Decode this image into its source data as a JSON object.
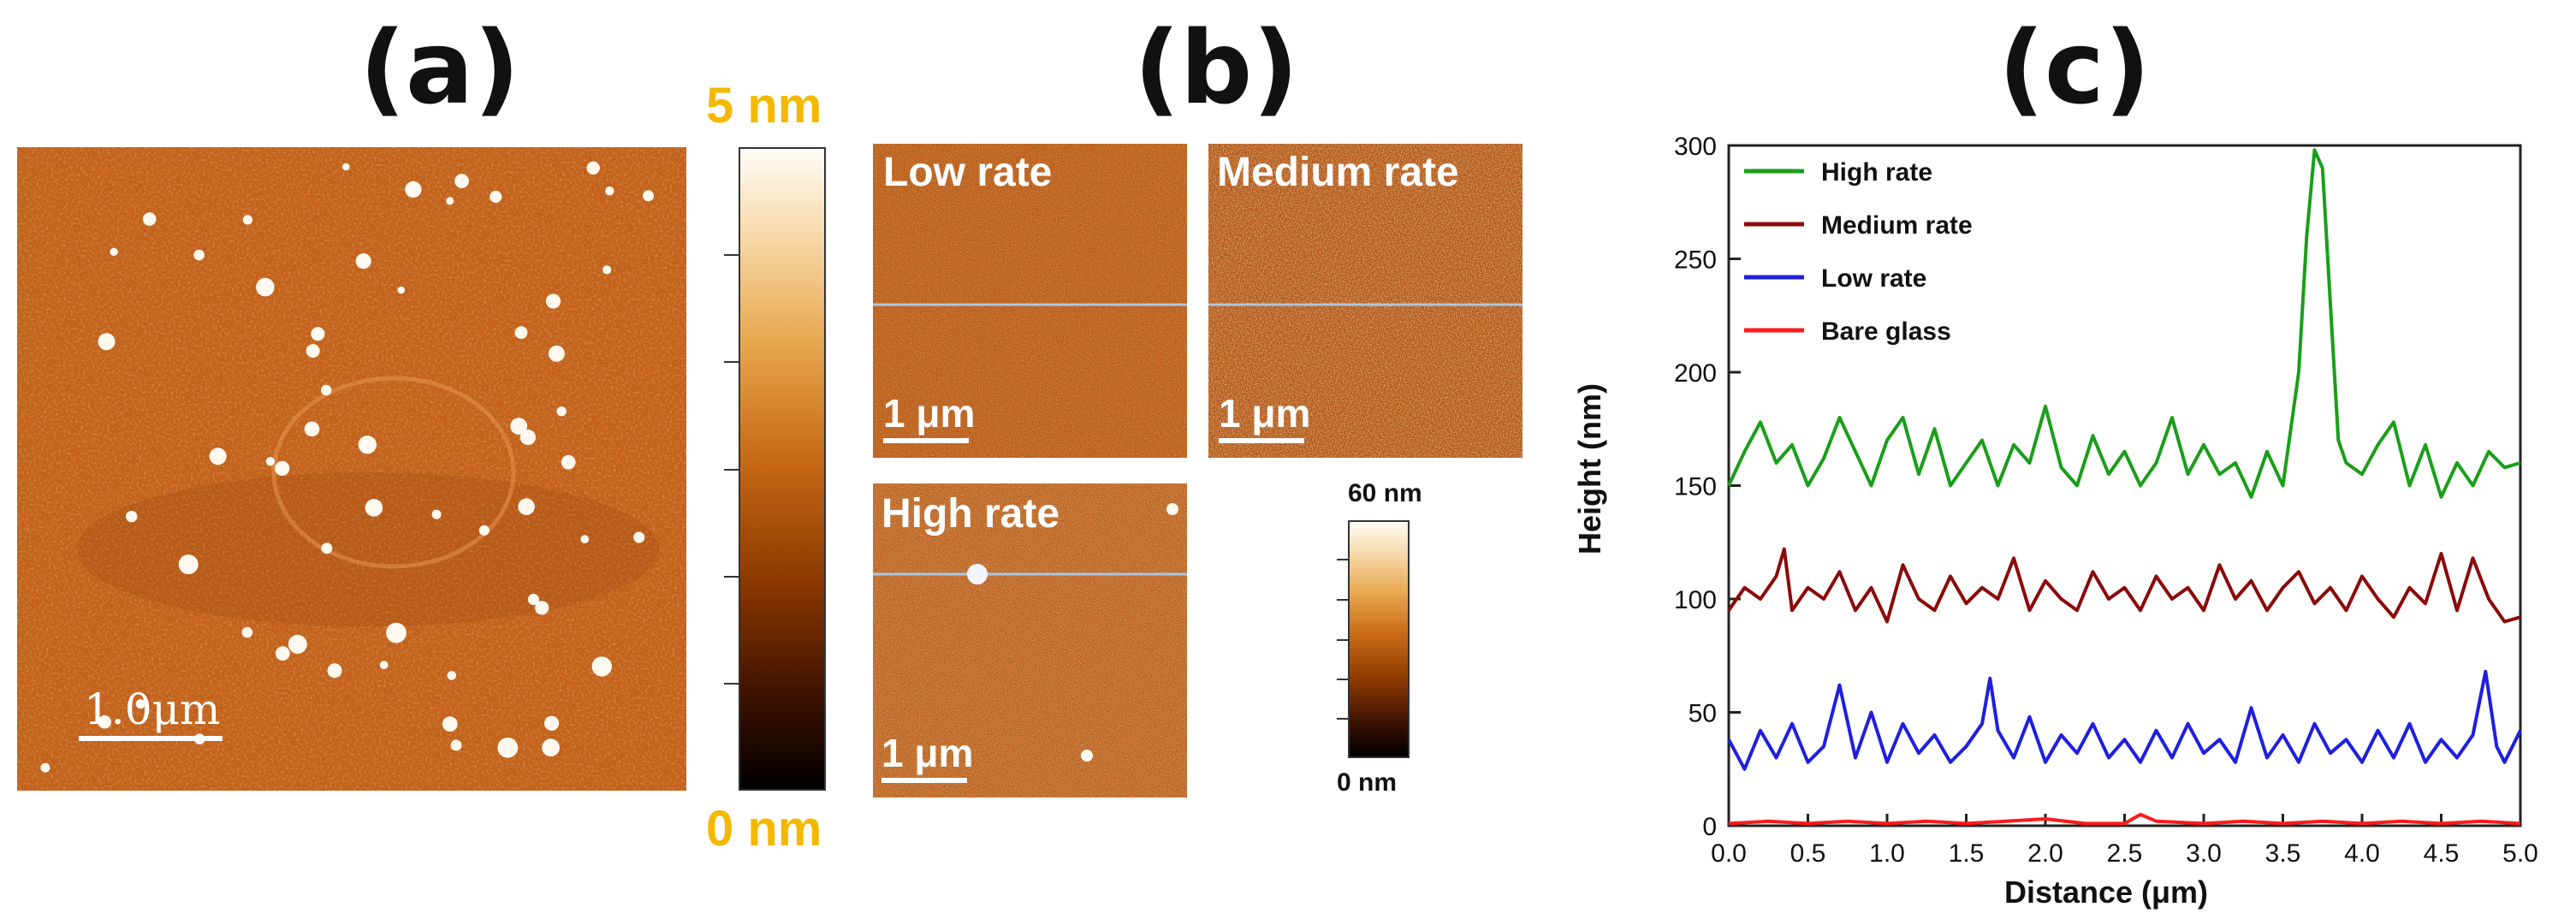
{
  "panels": {
    "a": {
      "label": "(a)",
      "scale_bar": "1.0μm",
      "colorbar": {
        "max": "5 nm",
        "min": "0 nm"
      }
    },
    "b": {
      "label": "(b)",
      "images": [
        {
          "title": "Low rate",
          "scale_bar": "1 μm"
        },
        {
          "title": "Medium rate",
          "scale_bar": "1 μm"
        },
        {
          "title": "High rate",
          "scale_bar": "1 μm"
        }
      ],
      "colorbar": {
        "max": "60 nm",
        "min": "0 nm"
      }
    },
    "c": {
      "label": "(c)"
    }
  },
  "colors": {
    "high": "#1a9e1a",
    "medium": "#8b0a0a",
    "low": "#1f1fe0",
    "bare": "#ff1a1a",
    "afm_dark": "#1a0800",
    "afm_mid": "#c8641a",
    "afm_light": "#fff8ee",
    "profile_line": "#a8c8e8"
  },
  "chart_data": {
    "type": "line",
    "title": "",
    "xlabel": "Distance (μm)",
    "ylabel": "Height (nm)",
    "xlim": [
      0,
      5
    ],
    "ylim": [
      0,
      300
    ],
    "xticks": [
      "0.0",
      "0.5",
      "1.0",
      "1.5",
      "2.0",
      "2.5",
      "3.0",
      "3.5",
      "4.0",
      "4.5",
      "5.0"
    ],
    "yticks": [
      "0",
      "50",
      "100",
      "150",
      "200",
      "250",
      "300"
    ],
    "legend_position": "top-left",
    "series": [
      {
        "name": "High rate",
        "color": "#1a9e1a",
        "x": [
          0.0,
          0.1,
          0.2,
          0.3,
          0.4,
          0.5,
          0.6,
          0.7,
          0.8,
          0.9,
          1.0,
          1.1,
          1.2,
          1.3,
          1.4,
          1.5,
          1.6,
          1.7,
          1.8,
          1.9,
          2.0,
          2.1,
          2.2,
          2.3,
          2.4,
          2.5,
          2.6,
          2.7,
          2.8,
          2.9,
          3.0,
          3.1,
          3.2,
          3.3,
          3.4,
          3.5,
          3.6,
          3.65,
          3.7,
          3.75,
          3.8,
          3.85,
          3.9,
          4.0,
          4.1,
          4.2,
          4.3,
          4.4,
          4.5,
          4.6,
          4.7,
          4.8,
          4.9,
          5.0
        ],
        "y": [
          150,
          165,
          178,
          160,
          168,
          150,
          162,
          180,
          165,
          150,
          170,
          180,
          155,
          175,
          150,
          160,
          170,
          150,
          168,
          160,
          185,
          158,
          150,
          172,
          155,
          165,
          150,
          160,
          180,
          155,
          168,
          155,
          160,
          145,
          165,
          150,
          200,
          260,
          298,
          290,
          230,
          170,
          160,
          155,
          168,
          178,
          150,
          168,
          145,
          160,
          150,
          165,
          158,
          160
        ]
      },
      {
        "name": "Medium rate",
        "color": "#8b0a0a",
        "x": [
          0.0,
          0.1,
          0.2,
          0.3,
          0.35,
          0.4,
          0.5,
          0.6,
          0.7,
          0.8,
          0.9,
          1.0,
          1.1,
          1.2,
          1.3,
          1.4,
          1.5,
          1.6,
          1.7,
          1.8,
          1.9,
          2.0,
          2.1,
          2.2,
          2.3,
          2.4,
          2.5,
          2.6,
          2.7,
          2.8,
          2.9,
          3.0,
          3.1,
          3.2,
          3.3,
          3.4,
          3.5,
          3.6,
          3.7,
          3.8,
          3.9,
          4.0,
          4.1,
          4.2,
          4.3,
          4.4,
          4.5,
          4.6,
          4.7,
          4.8,
          4.9,
          5.0
        ],
        "y": [
          95,
          105,
          100,
          110,
          122,
          95,
          105,
          100,
          112,
          95,
          105,
          90,
          115,
          100,
          95,
          110,
          98,
          105,
          100,
          118,
          95,
          108,
          100,
          95,
          112,
          100,
          105,
          95,
          110,
          100,
          105,
          95,
          115,
          100,
          108,
          95,
          105,
          112,
          98,
          105,
          95,
          110,
          100,
          92,
          105,
          98,
          120,
          95,
          118,
          100,
          90,
          92
        ]
      },
      {
        "name": "Low rate",
        "color": "#1f1fe0",
        "x": [
          0.0,
          0.1,
          0.2,
          0.3,
          0.4,
          0.5,
          0.6,
          0.7,
          0.8,
          0.9,
          1.0,
          1.1,
          1.2,
          1.3,
          1.4,
          1.5,
          1.6,
          1.65,
          1.7,
          1.8,
          1.9,
          2.0,
          2.1,
          2.2,
          2.3,
          2.4,
          2.5,
          2.6,
          2.7,
          2.8,
          2.9,
          3.0,
          3.1,
          3.2,
          3.3,
          3.4,
          3.5,
          3.6,
          3.7,
          3.8,
          3.9,
          4.0,
          4.1,
          4.2,
          4.3,
          4.4,
          4.5,
          4.6,
          4.7,
          4.78,
          4.85,
          4.9,
          5.0
        ],
        "y": [
          38,
          25,
          42,
          30,
          45,
          28,
          35,
          62,
          30,
          50,
          28,
          45,
          32,
          40,
          28,
          35,
          45,
          65,
          42,
          30,
          48,
          28,
          40,
          32,
          45,
          30,
          38,
          28,
          42,
          30,
          45,
          32,
          38,
          28,
          52,
          30,
          40,
          28,
          45,
          32,
          38,
          28,
          42,
          30,
          45,
          28,
          38,
          30,
          40,
          68,
          35,
          28,
          42
        ]
      },
      {
        "name": "Bare glass",
        "color": "#ff1a1a",
        "x": [
          0.0,
          0.25,
          0.5,
          0.75,
          1.0,
          1.25,
          1.5,
          1.75,
          2.0,
          2.25,
          2.5,
          2.6,
          2.7,
          3.0,
          3.25,
          3.5,
          3.75,
          4.0,
          4.25,
          4.5,
          4.75,
          5.0
        ],
        "y": [
          1,
          2,
          1,
          2,
          1,
          2,
          1,
          2,
          3,
          1,
          1,
          5,
          2,
          1,
          2,
          1,
          2,
          1,
          2,
          1,
          2,
          1
        ]
      }
    ]
  }
}
